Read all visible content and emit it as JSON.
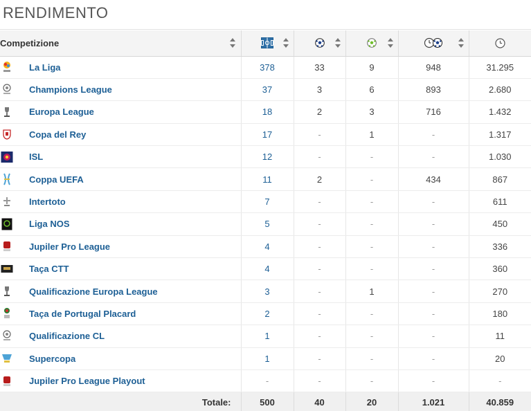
{
  "section_title": "RENDIMENTO",
  "table": {
    "header": {
      "competition": "Competizione",
      "icons": [
        "pitch-appearances-icon",
        "ball-goals-icon",
        "green-ball-assists-icon",
        "clock-ball-minutes-per-goal-icon",
        "clock-minutes-icon"
      ]
    },
    "rows": [
      {
        "name": "La Liga",
        "apps": "378",
        "goals": "33",
        "assists": "9",
        "min_per_goal": "948",
        "minutes": "31.295",
        "logo": "laliga-logo"
      },
      {
        "name": "Champions League",
        "apps": "37",
        "goals": "3",
        "assists": "6",
        "min_per_goal": "893",
        "minutes": "2.680",
        "logo": "champions-league-logo"
      },
      {
        "name": "Europa League",
        "apps": "18",
        "goals": "2",
        "assists": "3",
        "min_per_goal": "716",
        "minutes": "1.432",
        "logo": "europa-league-logo"
      },
      {
        "name": "Copa del Rey",
        "apps": "17",
        "goals": "-",
        "assists": "1",
        "min_per_goal": "-",
        "minutes": "1.317",
        "logo": "copa-del-rey-logo"
      },
      {
        "name": "ISL",
        "apps": "12",
        "goals": "-",
        "assists": "-",
        "min_per_goal": "-",
        "minutes": "1.030",
        "logo": "isl-logo"
      },
      {
        "name": "Coppa UEFA",
        "apps": "11",
        "goals": "2",
        "assists": "-",
        "min_per_goal": "434",
        "minutes": "867",
        "logo": "coppa-uefa-logo"
      },
      {
        "name": "Intertoto",
        "apps": "7",
        "goals": "-",
        "assists": "-",
        "min_per_goal": "-",
        "minutes": "611",
        "logo": "intertoto-logo"
      },
      {
        "name": "Liga NOS",
        "apps": "5",
        "goals": "-",
        "assists": "-",
        "min_per_goal": "-",
        "minutes": "450",
        "logo": "liga-nos-logo"
      },
      {
        "name": "Jupiler Pro League",
        "apps": "4",
        "goals": "-",
        "assists": "-",
        "min_per_goal": "-",
        "minutes": "336",
        "logo": "jupiler-pro-league-logo"
      },
      {
        "name": "Taça CTT",
        "apps": "4",
        "goals": "-",
        "assists": "-",
        "min_per_goal": "-",
        "minutes": "360",
        "logo": "taca-ctt-logo"
      },
      {
        "name": "Qualificazione Europa League",
        "apps": "3",
        "goals": "-",
        "assists": "1",
        "min_per_goal": "-",
        "minutes": "270",
        "logo": "qualificazione-europa-league-logo"
      },
      {
        "name": "Taça de Portugal Placard",
        "apps": "2",
        "goals": "-",
        "assists": "-",
        "min_per_goal": "-",
        "minutes": "180",
        "logo": "taca-de-portugal-logo"
      },
      {
        "name": "Qualificazione CL",
        "apps": "1",
        "goals": "-",
        "assists": "-",
        "min_per_goal": "-",
        "minutes": "11",
        "logo": "qualificazione-cl-logo"
      },
      {
        "name": "Supercopa",
        "apps": "1",
        "goals": "-",
        "assists": "-",
        "min_per_goal": "-",
        "minutes": "20",
        "logo": "supercopa-logo"
      },
      {
        "name": "Jupiler Pro League Playout",
        "apps": "-",
        "goals": "-",
        "assists": "-",
        "min_per_goal": "-",
        "minutes": "-",
        "logo": "jupiler-playout-logo"
      }
    ],
    "totals": {
      "label": "Totale:",
      "apps": "500",
      "goals": "40",
      "assists": "20",
      "min_per_goal": "1.021",
      "minutes": "40.859"
    }
  },
  "colors": {
    "link": "#1d5f95",
    "header_bg": "#f4f4f4",
    "footer_bg": "#f0f0f0"
  }
}
